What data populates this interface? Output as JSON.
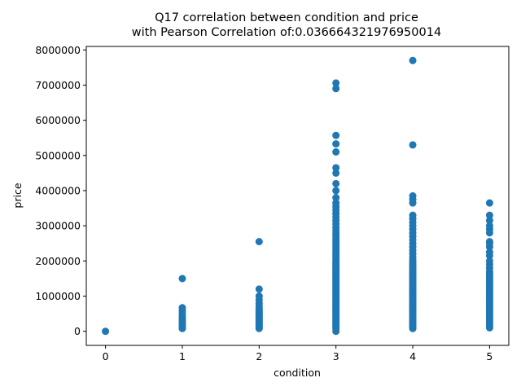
{
  "chart_data": {
    "type": "scatter",
    "title_line1": "Q17 correlation between condition and price",
    "title_line2": "with Pearson Correlation of:0.036664321976950014",
    "xlabel": "condition",
    "ylabel": "price",
    "xlim": [
      -0.25,
      5.25
    ],
    "ylim": [
      -400000,
      8100000
    ],
    "x_ticks": [
      0,
      1,
      2,
      3,
      4,
      5
    ],
    "x_tick_labels": [
      "0",
      "1",
      "2",
      "3",
      "4",
      "5"
    ],
    "y_ticks": [
      0,
      1000000,
      2000000,
      3000000,
      4000000,
      5000000,
      6000000,
      7000000,
      8000000
    ],
    "y_tick_labels": [
      "0",
      "1000000",
      "2000000",
      "3000000",
      "4000000",
      "5000000",
      "6000000",
      "7000000",
      "8000000"
    ],
    "grid": false,
    "marker_color": "#1f77b4",
    "series": [
      {
        "x": 0,
        "values": [
          0
        ]
      },
      {
        "x": 1,
        "values": [
          80000,
          120000,
          170000,
          220000,
          280000,
          350000,
          420000,
          500000,
          580000,
          670000,
          1500000
        ]
      },
      {
        "x": 2,
        "values": [
          80000,
          110000,
          140000,
          170000,
          200000,
          230000,
          260000,
          290000,
          320000,
          350000,
          380000,
          410000,
          440000,
          470000,
          500000,
          530000,
          560000,
          600000,
          650000,
          720000,
          800000,
          900000,
          1000000,
          1200000,
          2550000
        ]
      },
      {
        "x": 3,
        "values": [
          0,
          80000,
          120000,
          160000,
          200000,
          240000,
          280000,
          320000,
          360000,
          400000,
          440000,
          480000,
          520000,
          560000,
          600000,
          640000,
          680000,
          720000,
          760000,
          800000,
          840000,
          880000,
          920000,
          960000,
          1000000,
          1040000,
          1080000,
          1120000,
          1160000,
          1200000,
          1240000,
          1280000,
          1320000,
          1360000,
          1400000,
          1440000,
          1480000,
          1520000,
          1560000,
          1600000,
          1640000,
          1680000,
          1720000,
          1760000,
          1800000,
          1840000,
          1880000,
          1920000,
          1960000,
          2000000,
          2060000,
          2120000,
          2180000,
          2240000,
          2300000,
          2360000,
          2420000,
          2480000,
          2550000,
          2620000,
          2700000,
          2780000,
          2860000,
          2950000,
          3050000,
          3150000,
          3250000,
          3350000,
          3450000,
          3550000,
          3650000,
          3800000,
          4000000,
          4200000,
          4500000,
          4650000,
          5100000,
          5330000,
          5570000,
          6900000,
          7060000
        ]
      },
      {
        "x": 4,
        "values": [
          80000,
          120000,
          160000,
          200000,
          240000,
          280000,
          320000,
          360000,
          400000,
          440000,
          480000,
          520000,
          560000,
          600000,
          640000,
          680000,
          720000,
          760000,
          800000,
          840000,
          880000,
          920000,
          960000,
          1000000,
          1040000,
          1080000,
          1120000,
          1160000,
          1200000,
          1240000,
          1280000,
          1320000,
          1360000,
          1400000,
          1440000,
          1480000,
          1520000,
          1560000,
          1600000,
          1640000,
          1680000,
          1720000,
          1760000,
          1800000,
          1850000,
          1900000,
          1960000,
          2020000,
          2100000,
          2200000,
          2300000,
          2400000,
          2500000,
          2600000,
          2700000,
          2800000,
          2900000,
          3000000,
          3100000,
          3200000,
          3300000,
          3650000,
          3750000,
          3850000,
          5300000,
          7700000
        ]
      },
      {
        "x": 5,
        "values": [
          100000,
          150000,
          200000,
          250000,
          300000,
          350000,
          400000,
          450000,
          500000,
          550000,
          600000,
          650000,
          700000,
          750000,
          800000,
          850000,
          900000,
          950000,
          1000000,
          1050000,
          1100000,
          1150000,
          1200000,
          1250000,
          1300000,
          1350000,
          1400000,
          1450000,
          1500000,
          1550000,
          1600000,
          1650000,
          1700000,
          1800000,
          1900000,
          2000000,
          2150000,
          2250000,
          2400000,
          2500000,
          2550000,
          2800000,
          2900000,
          3000000,
          3150000,
          3300000,
          3650000
        ]
      }
    ]
  }
}
